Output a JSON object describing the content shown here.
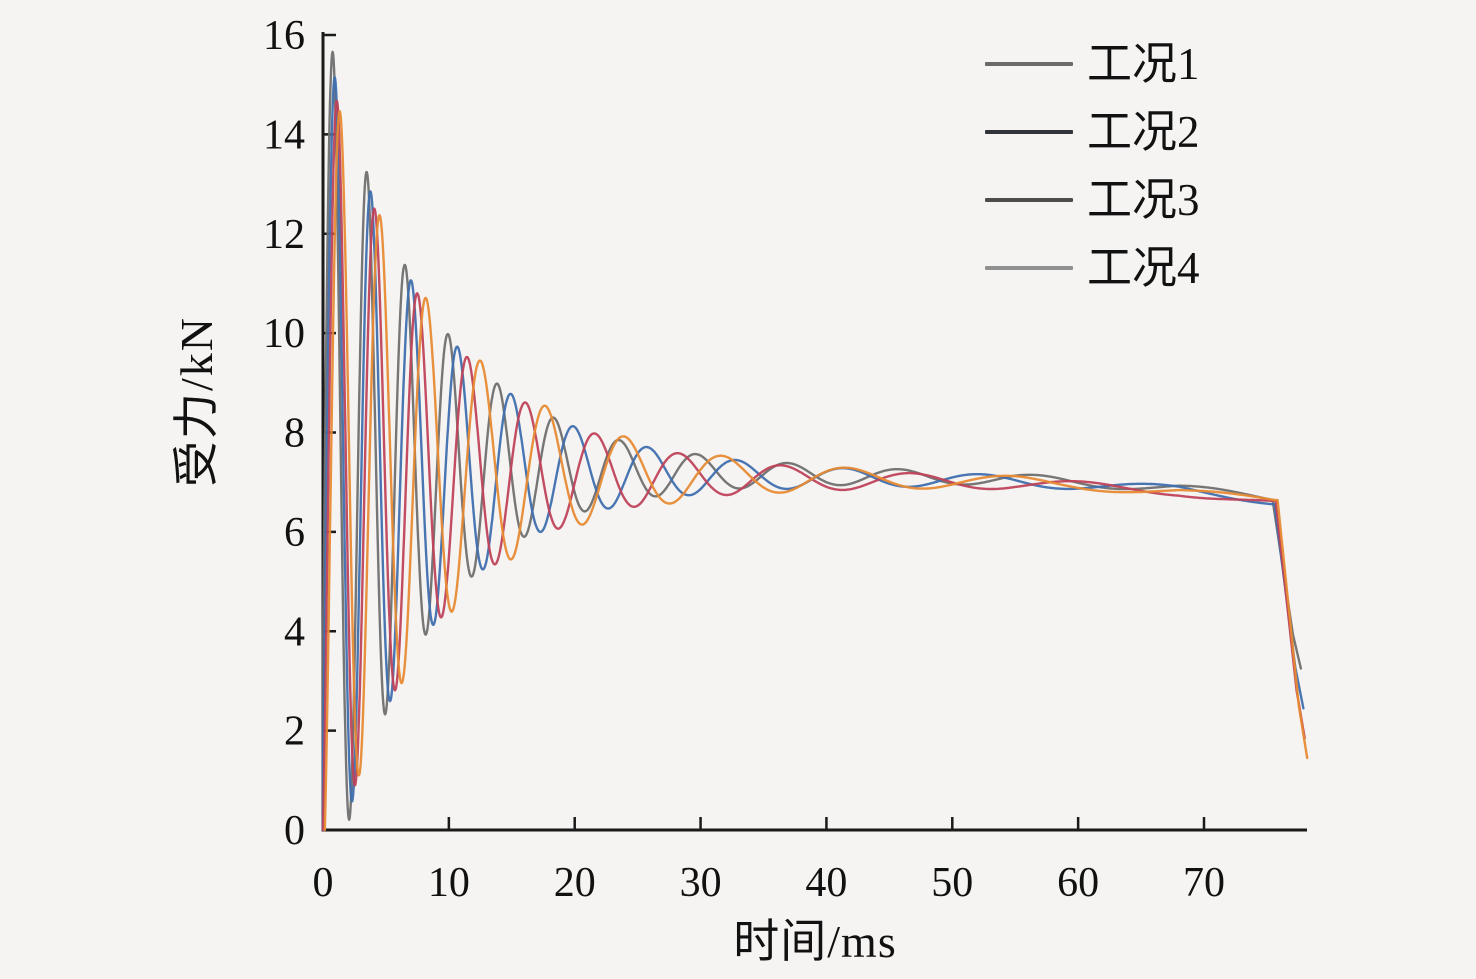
{
  "colors": {
    "background": "#f5f4f2",
    "axis": "#1a1a1a",
    "text": "#111111"
  },
  "legend": {
    "position": "top-right-inside",
    "items": [
      {
        "label": "工况1",
        "swatch_color": "#6a6a6a",
        "series_color": "#6f6f6f"
      },
      {
        "label": "工况2",
        "swatch_color": "#32323a",
        "series_color": "#3f6fae"
      },
      {
        "label": "工况3",
        "swatch_color": "#4c4c4c",
        "series_color": "#bf4258"
      },
      {
        "label": "工况4",
        "swatch_color": "#909090",
        "series_color": "#e78a33"
      }
    ]
  },
  "chart_data": {
    "type": "line",
    "title": "",
    "xlabel": "时间/ms",
    "ylabel": "受力/kN",
    "xlim": [
      0,
      78.4
    ],
    "ylim": [
      0,
      16
    ],
    "xticks": [
      0,
      10,
      20,
      30,
      40,
      50,
      60,
      70
    ],
    "yticks": [
      0,
      2,
      4,
      6,
      8,
      10,
      12,
      14,
      16
    ],
    "grid": false,
    "tick_direction": "in",
    "frame": "left-bottom-only",
    "description": "Four damped force-oscillation curves: steep rise from 0 kN near t=0 to ~15-15.8 kN, decaying oscillation (initial period ~2.6-2.9 ms, lengthening with time) about a plateau near 7.2 kN, slow decline to ~6.6 kN, then sharp drop at t≈75.5-78 ms down to ~1.4-3.3 kN.",
    "baseline_points_t_kN": [
      [
        0,
        7.26
      ],
      [
        15,
        7.22
      ],
      [
        35,
        7.12
      ],
      [
        55,
        7.02
      ],
      [
        68,
        6.85
      ],
      [
        75.5,
        6.62
      ]
    ],
    "series": [
      {
        "name": "工况1",
        "color": "#6f6f6f",
        "model": {
          "t_first_peak": 0.78,
          "period0_ms": 2.52,
          "period_growth": 0.0215,
          "amp0_kN": 8.8,
          "tau1_ms": 7.6,
          "amp2_kN": 0.42,
          "tau2_ms": 40,
          "baseline_offset": 0.04,
          "knee_ms": 75.45,
          "end_ms": 77.7,
          "end_kN": 3.25
        },
        "approx_key_points_t_kN": [
          [
            0,
            0
          ],
          [
            0.8,
            15.8
          ],
          [
            2.1,
            0.8
          ],
          [
            3.5,
            12.5
          ],
          [
            6.2,
            11.6
          ],
          [
            9.0,
            10.9
          ],
          [
            11.7,
            9.6
          ],
          [
            14.6,
            8.8
          ],
          [
            17.7,
            8.4
          ],
          [
            21.3,
            8.1
          ],
          [
            25.2,
            7.8
          ],
          [
            30,
            7.6
          ],
          [
            40,
            7.35
          ],
          [
            50,
            7.15
          ],
          [
            60,
            7.0
          ],
          [
            70,
            6.85
          ],
          [
            75.5,
            6.6
          ],
          [
            77.7,
            3.25
          ]
        ]
      },
      {
        "name": "工况2",
        "color": "#3f6fae",
        "model": {
          "t_first_peak": 0.95,
          "period0_ms": 2.62,
          "period_growth": 0.0225,
          "amp0_kN": 8.45,
          "tau1_ms": 7.9,
          "amp2_kN": 0.4,
          "tau2_ms": 42,
          "baseline_offset": 0.0,
          "knee_ms": 75.6,
          "end_ms": 77.9,
          "end_kN": 2.45
        },
        "approx_key_points_t_kN": [
          [
            0,
            0
          ],
          [
            0.95,
            15.3
          ],
          [
            2.3,
            0.7
          ],
          [
            3.7,
            12.2
          ],
          [
            6.4,
            11.3
          ],
          [
            9.2,
            10.6
          ],
          [
            12.0,
            9.4
          ],
          [
            15.0,
            8.7
          ],
          [
            18.2,
            8.3
          ],
          [
            22,
            8.0
          ],
          [
            26,
            7.7
          ],
          [
            30,
            7.5
          ],
          [
            40,
            7.3
          ],
          [
            50,
            7.1
          ],
          [
            60,
            7.0
          ],
          [
            70,
            6.8
          ],
          [
            75.6,
            6.6
          ],
          [
            77.9,
            2.45
          ]
        ]
      },
      {
        "name": "工况3",
        "color": "#bf4258",
        "model": {
          "t_first_peak": 1.12,
          "period0_ms": 2.72,
          "period_growth": 0.0235,
          "amp0_kN": 8.1,
          "tau1_ms": 8.3,
          "amp2_kN": 0.38,
          "tau2_ms": 44,
          "baseline_offset": -0.04,
          "knee_ms": 75.7,
          "end_ms": 78.0,
          "end_kN": 1.85
        },
        "approx_key_points_t_kN": [
          [
            0,
            0
          ],
          [
            1.1,
            14.9
          ],
          [
            2.5,
            0.9
          ],
          [
            3.9,
            12.0
          ],
          [
            6.6,
            11.2
          ],
          [
            9.5,
            10.4
          ],
          [
            12.3,
            9.3
          ],
          [
            15.3,
            8.6
          ],
          [
            18.6,
            8.2
          ],
          [
            22.5,
            7.9
          ],
          [
            26.5,
            7.6
          ],
          [
            31,
            7.45
          ],
          [
            40,
            7.3
          ],
          [
            50,
            7.1
          ],
          [
            60,
            7.0
          ],
          [
            70,
            6.8
          ],
          [
            75.7,
            6.6
          ],
          [
            78.0,
            1.85
          ]
        ]
      },
      {
        "name": "工况4",
        "color": "#e78a33",
        "model": {
          "t_first_peak": 1.35,
          "period0_ms": 2.85,
          "period_growth": 0.0245,
          "amp0_kN": 7.9,
          "tau1_ms": 8.8,
          "amp2_kN": 0.46,
          "tau2_ms": 38,
          "baseline_offset": -0.02,
          "knee_ms": 75.85,
          "end_ms": 78.2,
          "end_kN": 1.45
        },
        "approx_key_points_t_kN": [
          [
            0,
            0
          ],
          [
            1.35,
            15.0
          ],
          [
            2.8,
            0.8
          ],
          [
            4.1,
            11.9
          ],
          [
            6.9,
            11.1
          ],
          [
            9.8,
            10.3
          ],
          [
            12.6,
            9.2
          ],
          [
            15.6,
            8.5
          ],
          [
            19,
            8.2
          ],
          [
            23,
            7.9
          ],
          [
            27,
            7.6
          ],
          [
            31,
            7.4
          ],
          [
            40,
            7.25
          ],
          [
            50,
            7.1
          ],
          [
            60,
            7.0
          ],
          [
            70,
            6.8
          ],
          [
            75.9,
            6.6
          ],
          [
            78.2,
            1.45
          ]
        ]
      }
    ]
  }
}
